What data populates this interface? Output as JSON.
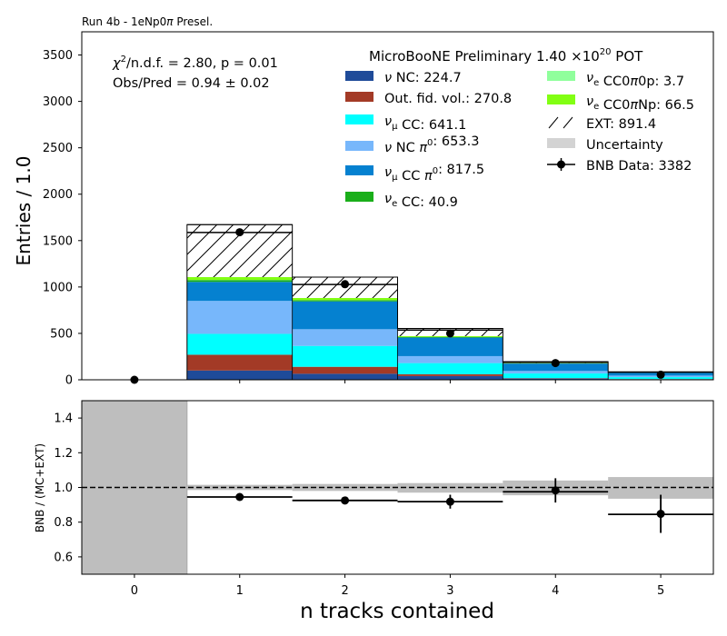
{
  "header": {
    "run_label": "Run 4b - 1eNp0",
    "run_label_pi": "π",
    "run_label_suffix": " Presel."
  },
  "stats": {
    "chi2_symbol": "χ",
    "chi2_sup": "2",
    "chi2_rest": "/n.d.f. = 2.80, p = 0.01",
    "obs_pred": "Obs/Pred = 0.94 ± 0.02"
  },
  "legend": {
    "title": "MicroBooNE Preliminary 1.40 ×10",
    "title_exp": "20",
    "title_suffix": " POT",
    "col1": [
      {
        "sym": "ν",
        "sub": "",
        "mid": " NC",
        "sup": "",
        "rest": ": 224.7",
        "color": "#1f4b99"
      },
      {
        "sym": "",
        "sub": "",
        "mid": "Out. fid. vol.",
        "sup": "",
        "rest": ": 270.8",
        "color": "#a33a26"
      },
      {
        "sym": "ν",
        "sub": "μ",
        "mid": " CC",
        "sup": "",
        "rest": ": 641.1",
        "color": "#00ffff"
      },
      {
        "sym": "ν",
        "sub": "",
        "mid": " NC π",
        "sup": "0",
        "rest": ": 653.3",
        "color": "#77b7fb"
      },
      {
        "sym": "ν",
        "sub": "μ",
        "mid": " CC π",
        "sup": "0",
        "rest": ": 817.5",
        "color": "#0581d0"
      },
      {
        "sym": "ν",
        "sub": "e",
        "mid": " CC",
        "sup": "",
        "rest": ": 40.9",
        "color": "#1aae1a"
      }
    ],
    "col2": [
      {
        "sym": "ν",
        "sub": "e",
        "mid": " CC0π0p",
        "rest": ": 3.7",
        "kind": "patch",
        "color": "#90ff9c"
      },
      {
        "sym": "ν",
        "sub": "e",
        "mid": " CC0πNp",
        "rest": ": 66.5",
        "kind": "patch",
        "color": "#82ff13"
      },
      {
        "sym": "",
        "sub": "",
        "mid": "EXT",
        "rest": ": 891.4",
        "kind": "hatch",
        "color": "#ffffff"
      },
      {
        "sym": "",
        "sub": "",
        "mid": "Uncertainty",
        "rest": "",
        "kind": "patch",
        "color": "#d3d3d3"
      },
      {
        "sym": "",
        "sub": "",
        "mid": "BNB Data",
        "rest": ": 3382",
        "kind": "point",
        "color": "#000000"
      }
    ]
  },
  "chart_data": [
    {
      "type": "bar",
      "subtype": "stacked-histogram",
      "xlabel": "n tracks contained",
      "ylabel": "Entries / 1.0",
      "xlim": [
        -0.5,
        5.5
      ],
      "ylim": [
        0,
        3750
      ],
      "yticks": [
        0,
        500,
        1000,
        1500,
        2000,
        2500,
        3000,
        3500
      ],
      "xticks": [
        0,
        1,
        2,
        3,
        4,
        5
      ],
      "bins": [
        [
          -0.5,
          0.5
        ],
        [
          0.5,
          1.5
        ],
        [
          1.5,
          2.5
        ],
        [
          2.5,
          3.5
        ],
        [
          3.5,
          4.5
        ],
        [
          4.5,
          5.5
        ]
      ],
      "series": [
        {
          "name": "ν NC",
          "color": "#1f4b99",
          "values": [
            0,
            100,
            65,
            40,
            14,
            6
          ]
        },
        {
          "name": "Out. fid. vol.",
          "color": "#a33a26",
          "values": [
            0,
            170,
            75,
            20,
            4,
            2
          ]
        },
        {
          "name": "νμ CC",
          "color": "#00ffff",
          "values": [
            0,
            225,
            225,
            120,
            50,
            21
          ]
        },
        {
          "name": "ν NC π0",
          "color": "#77b7fb",
          "values": [
            0,
            355,
            180,
            75,
            27,
            16
          ]
        },
        {
          "name": "νμ CC π0",
          "color": "#0581d0",
          "values": [
            0,
            205,
            300,
            200,
            80,
            32
          ]
        },
        {
          "name": "νe CC",
          "color": "#1aae1a",
          "values": [
            0,
            20,
            13,
            5,
            2,
            1
          ]
        },
        {
          "name": "νe CC0π0p",
          "color": "#90ff9c",
          "values": [
            0,
            2,
            1,
            0.5,
            0.2,
            0
          ]
        },
        {
          "name": "νe CC0πNp",
          "color": "#82ff13",
          "values": [
            0,
            30,
            23,
            10,
            3,
            1
          ]
        },
        {
          "name": "EXT",
          "color": "hatch",
          "values": [
            0,
            480,
            145,
            65,
            8,
            3
          ]
        }
      ],
      "uncertainty": [
        0,
        85,
        80,
        18,
        6,
        3
      ],
      "data_points": {
        "name": "BNB Data",
        "x": [
          0,
          1,
          2,
          3,
          4,
          5
        ],
        "y": [
          0,
          1590,
          1030,
          500,
          180,
          55
        ]
      }
    },
    {
      "type": "scatter",
      "subtype": "ratio",
      "xlabel": "n tracks contained",
      "ylabel": "BNB / (MC+EXT)",
      "xlim": [
        -0.5,
        5.5
      ],
      "ylim": [
        0.5,
        1.5
      ],
      "yticks": [
        0.6,
        0.8,
        1.0,
        1.2,
        1.4
      ],
      "xticks": [
        0,
        1,
        2,
        3,
        4,
        5
      ],
      "reference_line": 1.0,
      "uncertainty_band": [
        {
          "bin": [
            -0.5,
            0.5
          ],
          "lo": 0.5,
          "hi": 1.5
        },
        {
          "bin": [
            0.5,
            1.5
          ],
          "lo": 0.985,
          "hi": 1.015
        },
        {
          "bin": [
            1.5,
            2.5
          ],
          "lo": 0.98,
          "hi": 1.02
        },
        {
          "bin": [
            2.5,
            3.5
          ],
          "lo": 0.97,
          "hi": 1.025
        },
        {
          "bin": [
            3.5,
            4.5
          ],
          "lo": 0.955,
          "hi": 1.04
        },
        {
          "bin": [
            4.5,
            5.5
          ],
          "lo": 0.935,
          "hi": 1.06
        }
      ],
      "ratio_steps": [
        {
          "bin": [
            0.5,
            1.5
          ],
          "value": 0.945
        },
        {
          "bin": [
            1.5,
            2.5
          ],
          "value": 0.925
        },
        {
          "bin": [
            2.5,
            3.5
          ],
          "value": 0.918
        },
        {
          "bin": [
            3.5,
            4.5
          ],
          "value": 0.975
        },
        {
          "bin": [
            4.5,
            5.5
          ],
          "value": 0.845
        }
      ],
      "points": {
        "x": [
          1,
          2,
          3,
          4,
          5
        ],
        "y": [
          0.945,
          0.925,
          0.918,
          0.983,
          0.848
        ],
        "err": [
          0.02,
          0.02,
          0.04,
          0.07,
          0.11
        ]
      }
    }
  ]
}
